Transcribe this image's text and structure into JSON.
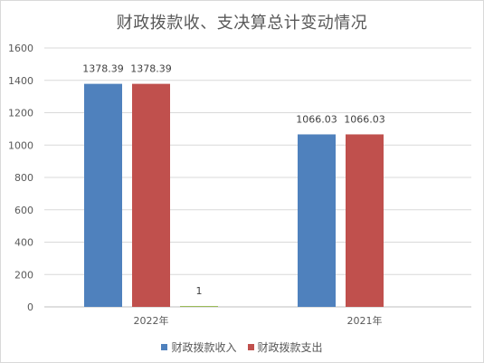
{
  "chart_data": {
    "type": "bar",
    "title": "财政拨款收、支决算总计变动情况",
    "categories": [
      "2022年",
      "2021年"
    ],
    "ylim": [
      0,
      1600
    ],
    "yticks": [
      0,
      200,
      400,
      600,
      800,
      1000,
      1200,
      1400,
      1600
    ],
    "grid": true,
    "legend_position": "bottom",
    "series": [
      {
        "name": "财政拨款收入",
        "color": "#4f81bd",
        "values": [
          1378.39,
          1066.03
        ],
        "labels": [
          "1378.39",
          "1066.03"
        ]
      },
      {
        "name": "财政拨款支出",
        "color": "#c0504d",
        "values": [
          1378.39,
          1066.03
        ],
        "labels": [
          "1378.39",
          "1066.03"
        ]
      },
      {
        "color": "#9bbb59",
        "values": [
          1,
          null
        ],
        "labels": [
          "1",
          ""
        ]
      }
    ]
  }
}
